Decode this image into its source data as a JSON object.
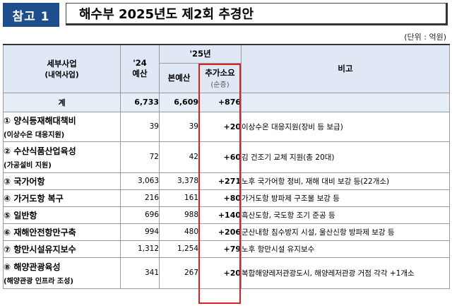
{
  "title": {
    "badge": "참고 1",
    "text": "해수부 2025년도 제2회 추경안"
  },
  "unit": "(단위 : 억원)",
  "headers": {
    "project": "세부사업",
    "project_sub": "(내역사업)",
    "prev_year": "'24",
    "prev_year_sub": "예산",
    "cur_year": "'25년",
    "base_budget": "본예산",
    "additional": "추가소요",
    "additional_sub": "(순증)",
    "note": "비고"
  },
  "total": {
    "label": "계",
    "y24": "6,733",
    "base": "6,609",
    "add": "+876"
  },
  "rows": [
    {
      "name": "① 양식등재해대책비",
      "sub": "(이상수온 대응지원)",
      "y24": "39",
      "base": "39",
      "add": "+20",
      "note": "이상수온 대응지원(장비 등 보급)"
    },
    {
      "name": "② 수산식품산업육성",
      "sub": "(가공설비 지원)",
      "y24": "72",
      "base": "42",
      "add": "+60",
      "note": "김 건조기 교체 지원(총 20대)"
    },
    {
      "name": "③ 국가어항",
      "sub": "",
      "y24": "3,063",
      "base": "3,378",
      "add": "+271",
      "note": "노후 국가어항 정비, 재해 대비 보강 등(22개소)"
    },
    {
      "name": "④ 가거도항 복구",
      "sub": "",
      "y24": "216",
      "base": "161",
      "add": "+80",
      "note": "가거도항 방파제 구조물 보강 등"
    },
    {
      "name": "⑤ 일반항",
      "sub": "",
      "y24": "696",
      "base": "988",
      "add": "+140",
      "note": "흑산도항, 국도항 조기 준공 등"
    },
    {
      "name": "⑥ 재해안전항만구축",
      "sub": "",
      "y24": "994",
      "base": "480",
      "add": "+206",
      "note": "군산내항 침수방지 시설, 울산신항 방파제 보강 등"
    },
    {
      "name": "⑦ 항만시설유지보수",
      "sub": "",
      "y24": "1,312",
      "base": "1,254",
      "add": "+79",
      "note": "노후 항만시설 유지보수"
    },
    {
      "name": "⑧ 해양관광육성",
      "sub": "(해양관광 인프라 조성)",
      "y24": "341",
      "base": "267",
      "add": "+20",
      "note": "복합해양레저관광도시, 해양레저관광 거점 각각 +1개소"
    }
  ]
}
